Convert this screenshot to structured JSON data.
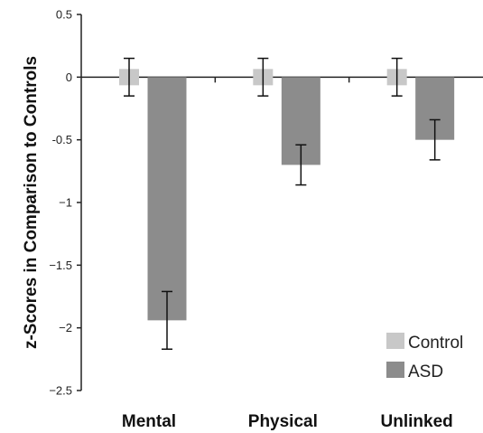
{
  "chart_data": {
    "type": "bar",
    "categories": [
      "Mental",
      "Physical",
      "Unlinked"
    ],
    "series": [
      {
        "name": "Control",
        "values": [
          0.0,
          0.0,
          0.0
        ],
        "error": [
          0.15,
          0.15,
          0.15
        ],
        "color": "#c8c8c8"
      },
      {
        "name": "ASD",
        "values": [
          -1.94,
          -0.7,
          -0.5
        ],
        "error": [
          0.23,
          0.16,
          0.16
        ],
        "color": "#8c8c8c"
      }
    ],
    "ylabel": "z-Scores in Comparison to Controls",
    "ylim": [
      -2.5,
      0.5
    ],
    "yticks": [
      0.5,
      0,
      -0.5,
      -1,
      -1.5,
      -2,
      -2.5
    ],
    "ytick_labels": [
      "0.5",
      "0",
      "-0.5",
      "−1",
      "−1.5",
      "−2",
      "−2.5"
    ],
    "legend": "bottom-right",
    "grid": false
  }
}
